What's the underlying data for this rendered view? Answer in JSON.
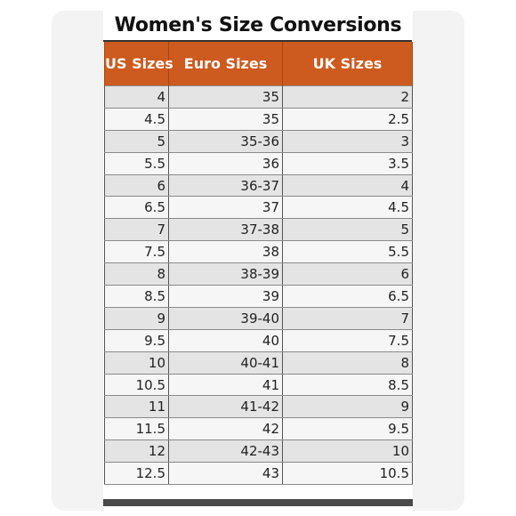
{
  "title": "Women's Size Conversions",
  "headers": [
    "US Sizes",
    "Euro Sizes",
    "UK Sizes"
  ],
  "rows": [
    [
      "4",
      "35",
      "2"
    ],
    [
      "4.5",
      "35",
      "2.5"
    ],
    [
      "5",
      "35-36",
      "3"
    ],
    [
      "5.5",
      "36",
      "3.5"
    ],
    [
      "6",
      "36-37",
      "4"
    ],
    [
      "6.5",
      "37",
      "4.5"
    ],
    [
      "7",
      "37-38",
      "5"
    ],
    [
      "7.5",
      "38",
      "5.5"
    ],
    [
      "8",
      "38-39",
      "6"
    ],
    [
      "8.5",
      "39",
      "6.5"
    ],
    [
      "9",
      "39-40",
      "7"
    ],
    [
      "9.5",
      "40",
      "7.5"
    ],
    [
      "10",
      "40-41",
      "8"
    ],
    [
      "10.5",
      "41",
      "8.5"
    ],
    [
      "11",
      "41-42",
      "9"
    ],
    [
      "11.5",
      "42",
      "9.5"
    ],
    [
      "12",
      "42-43",
      "10"
    ],
    [
      "12.5",
      "43",
      "10.5"
    ]
  ],
  "colors": {
    "header_background": "#cd5a1e",
    "header_text": "#ffffff",
    "row_shaded": "#e4e4e4",
    "row_plain": "#f6f6f6"
  }
}
